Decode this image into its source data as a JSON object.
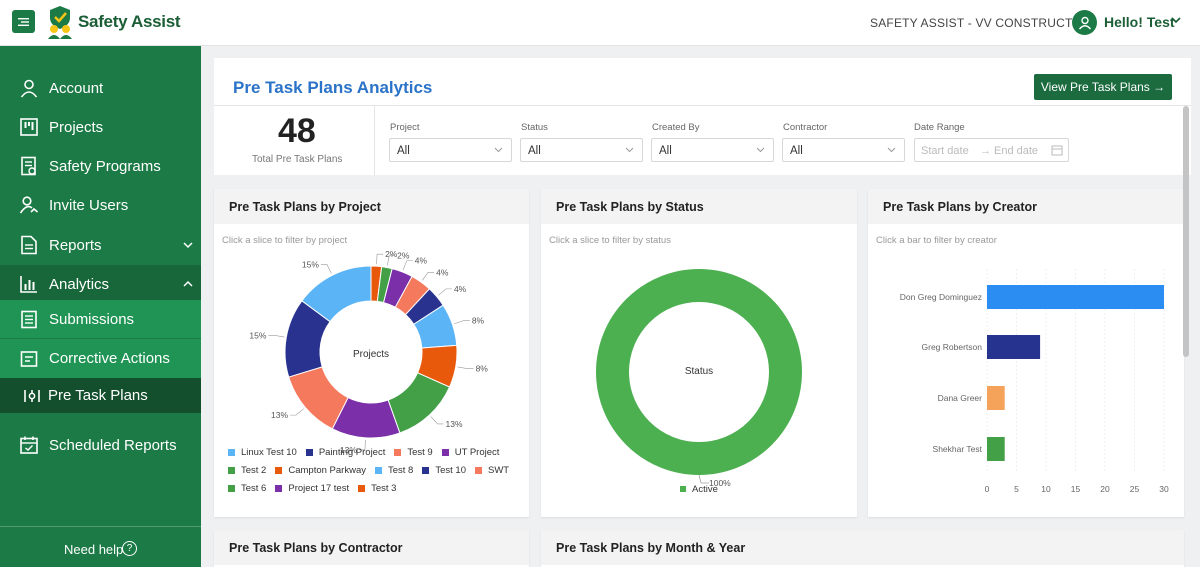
{
  "app": {
    "brand": "Safety Assist",
    "org": "SAFETY ASSIST - VV CONSTRUCTION",
    "greeting": "Hello! Test"
  },
  "sidebar": {
    "items": [
      {
        "label": "Account",
        "icon": "user-icon"
      },
      {
        "label": "Projects",
        "icon": "projects-icon"
      },
      {
        "label": "Safety Programs",
        "icon": "document-icon"
      },
      {
        "label": "Invite Users",
        "icon": "invite-user-icon"
      },
      {
        "label": "Reports",
        "icon": "report-icon"
      },
      {
        "label": "Analytics",
        "icon": "bar-chart-icon"
      },
      {
        "label": "Submissions",
        "icon": "clipboard-icon"
      },
      {
        "label": "Corrective Actions",
        "icon": "corrective-icon"
      },
      {
        "label": "Pre Task Plans",
        "icon": "sliders-icon"
      },
      {
        "label": "Scheduled Reports",
        "icon": "calendar-icon"
      }
    ],
    "help": "Need help"
  },
  "page": {
    "title": "Pre Task Plans Analytics",
    "view_button": "View Pre Task Plans →",
    "total_value": "48",
    "total_label": "Total Pre Task Plans"
  },
  "filters": {
    "project": {
      "label": "Project",
      "value": "All"
    },
    "status": {
      "label": "Status",
      "value": "All"
    },
    "created_by": {
      "label": "Created By",
      "value": "All"
    },
    "contractor": {
      "label": "Contractor",
      "value": "All"
    },
    "date_range": {
      "label": "Date Range",
      "start": "Start date",
      "end": "End date"
    }
  },
  "cards": {
    "project": {
      "title": "Pre Task Plans by Project",
      "hint": "Click a slice to filter by project",
      "center": "Projects"
    },
    "status": {
      "title": "Pre Task Plans by Status",
      "hint": "Click a slice to filter by status",
      "center": "Status"
    },
    "creator": {
      "title": "Pre Task Plans by Creator",
      "hint": "Click a bar to filter by creator"
    },
    "contractor": {
      "title": "Pre Task Plans by Contractor"
    },
    "month": {
      "title": "Pre Task Plans by Month & Year"
    }
  },
  "chart_data": [
    {
      "type": "pie",
      "title": "Pre Task Plans by Project",
      "categories": [
        "Linux Test 10",
        "Painting Project",
        "Test 9",
        "UT Project",
        "Test 2",
        "Campton Parkway",
        "Test 8",
        "Test 10",
        "SWT",
        "Test 6",
        "Project 17 test",
        "Test 3"
      ],
      "slice_order": [
        "Test 3",
        "Test 6",
        "UT Project",
        "SWT",
        "Test 10",
        "Test 8",
        "Campton Parkway",
        "Test 2",
        "Project 17 test",
        "Test 9",
        "Painting Project",
        "Linux Test 10"
      ],
      "values": [
        2,
        2,
        4,
        4,
        4,
        8,
        8,
        13,
        13,
        13,
        15,
        15
      ],
      "labels": [
        "2%",
        "2%",
        "4%",
        "4%",
        "4%",
        "8%",
        "8%",
        "13%",
        "13%",
        "13%",
        "15%",
        "15%"
      ],
      "colors": {
        "Linux Test 10": "#5ab4f5",
        "Painting Project": "#29338f",
        "Test 9": "#f5795c",
        "UT Project": "#7b2fa8",
        "Test 2": "#43a047",
        "Campton Parkway": "#e8590c",
        "Test 8": "#5ab4f5",
        "Test 10": "#29338f",
        "SWT": "#f5795c",
        "Test 6": "#43a047",
        "Project 17 test": "#7b2fa8",
        "Test 3": "#e8590c"
      }
    },
    {
      "type": "pie",
      "title": "Pre Task Plans by Status",
      "categories": [
        "Active"
      ],
      "values": [
        100
      ],
      "labels": [
        "100%"
      ],
      "colors": {
        "Active": "#4caf50"
      }
    },
    {
      "type": "bar",
      "orientation": "horizontal",
      "title": "Pre Task Plans by Creator",
      "categories": [
        "Don Greg Dominguez",
        "Greg Robertson",
        "Dana Greer",
        "Shekhar Test"
      ],
      "values": [
        30,
        9,
        3,
        3
      ],
      "colors": [
        "#2b8cf2",
        "#26338f",
        "#f5a25a",
        "#43a047"
      ],
      "xlim": [
        0,
        30
      ],
      "xticks": [
        "0",
        "5",
        "10",
        "15",
        "20",
        "25",
        "30"
      ]
    }
  ]
}
